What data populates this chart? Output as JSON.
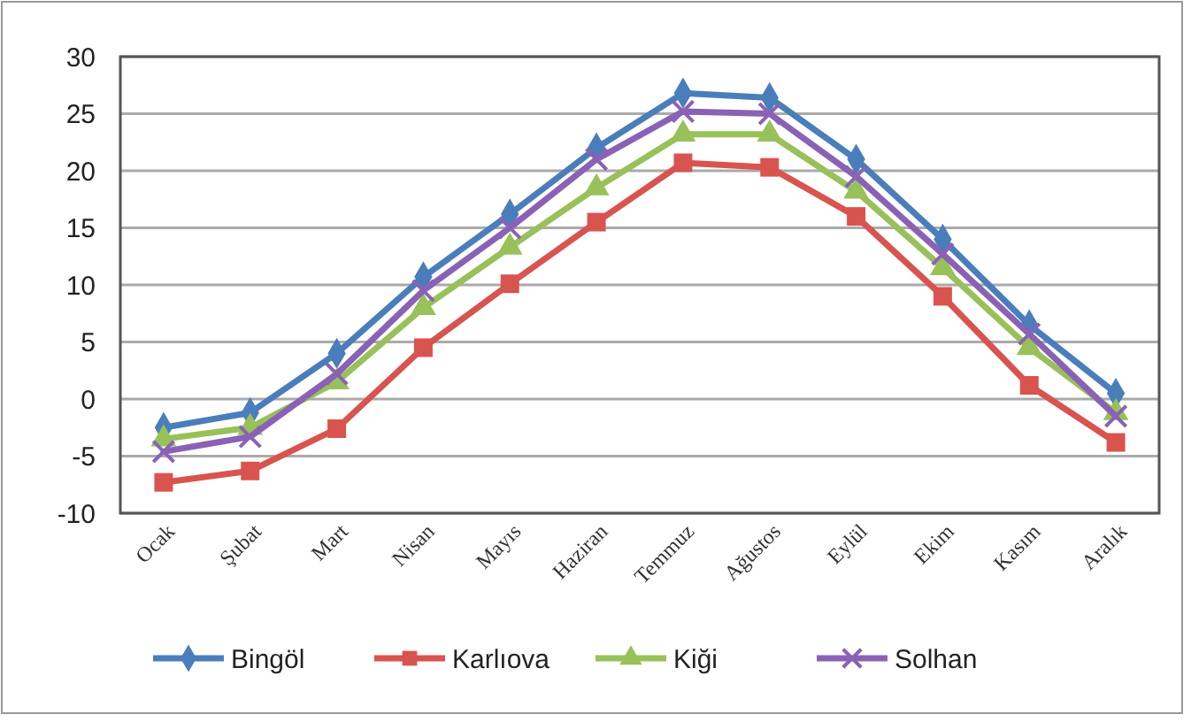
{
  "chart_data": {
    "type": "line",
    "categories": [
      "Ocak",
      "Şubat",
      "Mart",
      "Nisan",
      "Mayıs",
      "Haziran",
      "Temmuz",
      "Ağustos",
      "Eylül",
      "Ekim",
      "Kasım",
      "Aralık"
    ],
    "series": [
      {
        "name": "Bingöl",
        "color": "#4a7ebb",
        "marker": "diamond",
        "values": [
          -2.5,
          -1.2,
          4,
          10.7,
          16.2,
          22,
          26.8,
          26.4,
          21,
          14,
          6.5,
          0.5
        ]
      },
      {
        "name": "Karlıova",
        "color": "#d9534f",
        "marker": "square",
        "values": [
          -7.3,
          -6.3,
          -2.6,
          4.5,
          10.1,
          15.5,
          20.7,
          20.3,
          16,
          9,
          1.2,
          -3.8
        ]
      },
      {
        "name": "Kiği",
        "color": "#98c15a",
        "marker": "triangle",
        "values": [
          -3.5,
          -2.5,
          1.5,
          8,
          13.3,
          18.5,
          23.2,
          23.2,
          18.2,
          11.5,
          4.5,
          -1.2
        ]
      },
      {
        "name": "Solhan",
        "color": "#8a62b5",
        "marker": "cross",
        "values": [
          -4.6,
          -3.3,
          2.2,
          9.5,
          15,
          21,
          25.2,
          25,
          19.5,
          12.7,
          5.7,
          -1.5
        ]
      }
    ],
    "ylim": [
      -10,
      30
    ],
    "yticks": [
      -10,
      -5,
      0,
      5,
      10,
      15,
      20,
      25,
      30
    ],
    "grid": "y",
    "legend": "bottom",
    "line_style": "solid"
  }
}
